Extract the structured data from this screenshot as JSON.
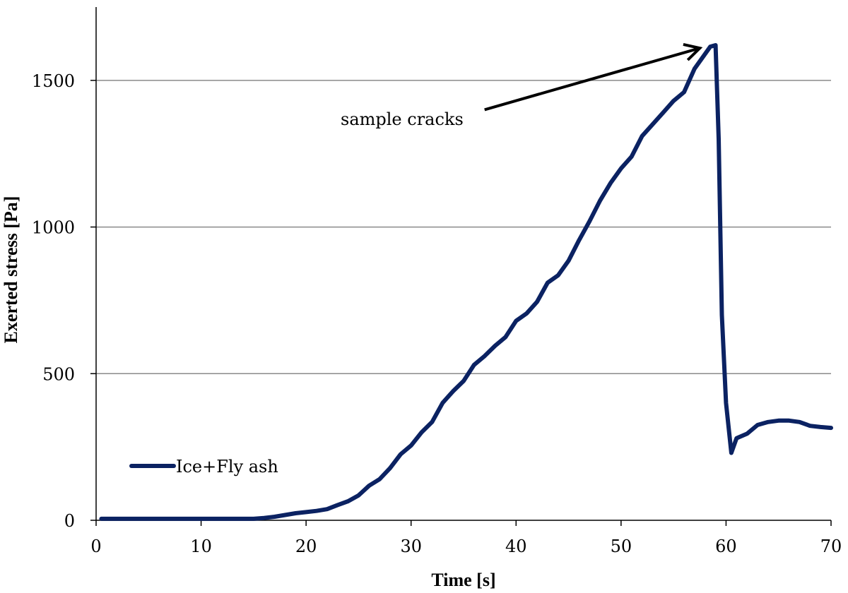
{
  "chart_data": {
    "type": "line",
    "xlabel": "Time [s]",
    "ylabel": "Exerted stress [Pa]",
    "xlim": [
      0,
      70
    ],
    "ylim": [
      0,
      1750
    ],
    "x_ticks": [
      0,
      10,
      20,
      30,
      40,
      50,
      60,
      70
    ],
    "y_ticks": [
      0,
      500,
      1000,
      1500
    ],
    "grid": "horizontal",
    "legend_position": "lower-left",
    "annotation": {
      "text": "sample cracks",
      "points_to": [
        57.5,
        1610
      ],
      "from": [
        37,
        1400
      ]
    },
    "series": [
      {
        "name": "Ice+Fly ash",
        "color": "#0b2262",
        "x": [
          0.5,
          5,
          10,
          15,
          16,
          17,
          18,
          19,
          20,
          21,
          22,
          23,
          24,
          25,
          26,
          27,
          28,
          29,
          30,
          31,
          32,
          33,
          34,
          35,
          36,
          37,
          38,
          39,
          40,
          41,
          42,
          43,
          44,
          45,
          46,
          47,
          48,
          49,
          50,
          51,
          52,
          53,
          54,
          55,
          56,
          57,
          58,
          58.5,
          59,
          59.3,
          59.6,
          60,
          60.5,
          61,
          62,
          63,
          64,
          65,
          66,
          67,
          68,
          69,
          70
        ],
        "y": [
          5,
          5,
          5,
          5,
          8,
          12,
          18,
          24,
          28,
          32,
          38,
          52,
          65,
          85,
          118,
          140,
          178,
          225,
          255,
          300,
          335,
          400,
          440,
          475,
          530,
          560,
          595,
          625,
          680,
          705,
          745,
          810,
          835,
          885,
          955,
          1020,
          1090,
          1150,
          1200,
          1240,
          1310,
          1350,
          1390,
          1430,
          1460,
          1540,
          1590,
          1615,
          1620,
          1300,
          700,
          400,
          230,
          280,
          295,
          325,
          335,
          340,
          340,
          335,
          322,
          318,
          315
        ]
      }
    ]
  }
}
